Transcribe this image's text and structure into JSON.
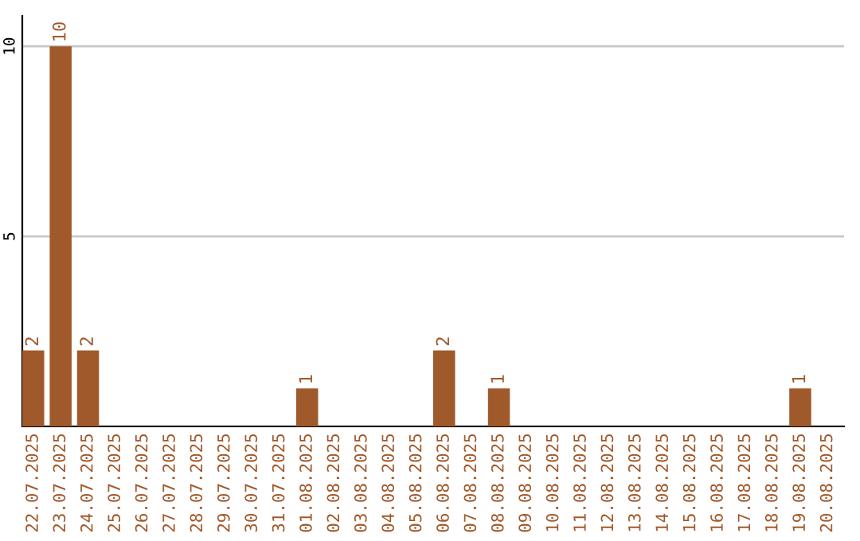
{
  "chart_data": {
    "type": "bar",
    "categories": [
      "22.07.2025",
      "23.07.2025",
      "24.07.2025",
      "25.07.2025",
      "26.07.2025",
      "27.07.2025",
      "28.07.2025",
      "29.07.2025",
      "30.07.2025",
      "31.07.2025",
      "01.08.2025",
      "02.08.2025",
      "03.08.2025",
      "04.08.2025",
      "05.08.2025",
      "06.08.2025",
      "07.08.2025",
      "08.08.2025",
      "09.08.2025",
      "10.08.2025",
      "11.08.2025",
      "12.08.2025",
      "13.08.2025",
      "14.08.2025",
      "15.08.2025",
      "16.08.2025",
      "17.08.2025",
      "18.08.2025",
      "19.08.2025",
      "20.08.2025"
    ],
    "values": [
      2,
      10,
      2,
      0,
      0,
      0,
      0,
      0,
      0,
      0,
      1,
      0,
      0,
      0,
      0,
      2,
      0,
      1,
      0,
      0,
      0,
      0,
      0,
      0,
      0,
      0,
      0,
      0,
      1,
      0
    ],
    "value_labels": [
      "2",
      "10",
      "2",
      null,
      null,
      null,
      null,
      null,
      null,
      null,
      "1",
      null,
      null,
      null,
      null,
      "2",
      null,
      "1",
      null,
      null,
      null,
      null,
      null,
      null,
      null,
      null,
      null,
      null,
      "1",
      null
    ],
    "color": "#a0592b",
    "ylim": [
      0,
      10.8
    ],
    "yticks": [
      {
        "value": 0,
        "label": null
      },
      5,
      10
    ],
    "grid": "y",
    "legend": false
  }
}
